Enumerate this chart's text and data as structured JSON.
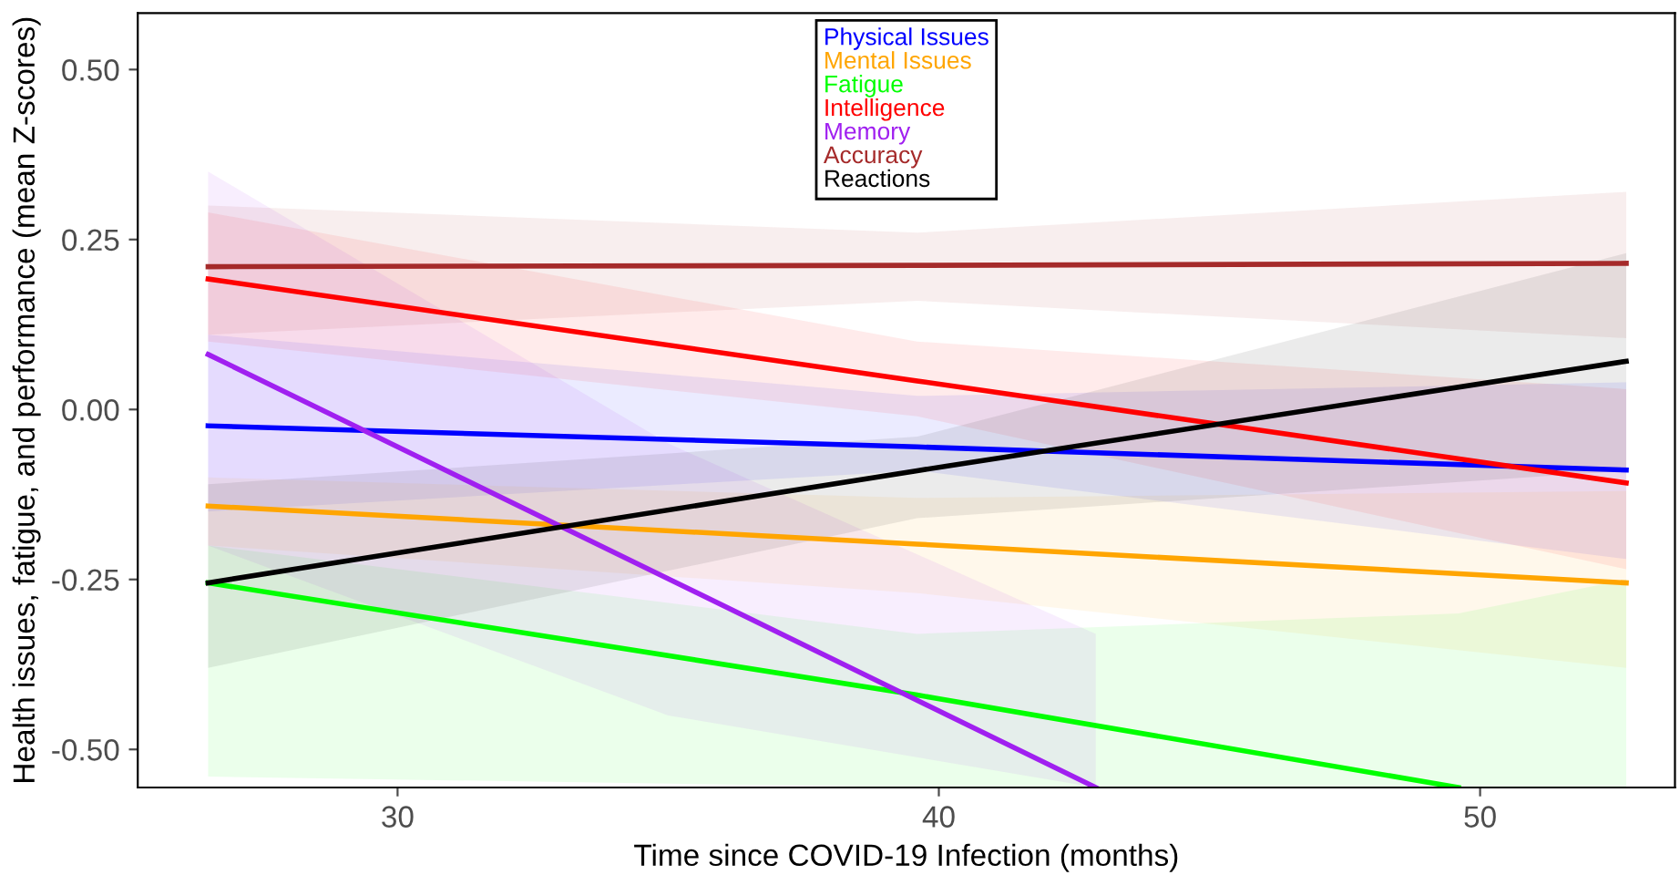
{
  "chart_data": {
    "type": "line",
    "xlabel": "Time since COVID-19 Infection (months)",
    "ylabel": "Health issues, fatigue, and performance (mean Z-scores)",
    "xlim": [
      25.2,
      53.6
    ],
    "xticks": [
      30,
      40,
      50
    ],
    "ylim": [
      -0.556,
      0.583
    ],
    "yticks": [
      {
        "value": 0.5,
        "label": "0.50"
      },
      {
        "value": 0.25,
        "label": "0.25"
      },
      {
        "value": 0,
        "label": "0.00"
      },
      {
        "value": -0.25,
        "label": "-0.25"
      },
      {
        "value": -0.5,
        "label": "-0.50"
      }
    ],
    "grid": false,
    "legend": "top",
    "marker": "none",
    "line_style": "solid",
    "series": [
      {
        "name": "Physical Issues",
        "color": "#0000ff",
        "x": [
          26.5,
          39.6,
          52.7
        ],
        "values": [
          -0.024,
          -0.055,
          -0.089
        ],
        "lower": [
          -0.15,
          -0.09,
          -0.22
        ],
        "upper": [
          0.11,
          0.02,
          0.04
        ]
      },
      {
        "name": "Mental Issues",
        "color": "#ffa500",
        "x": [
          26.5,
          39.6,
          52.7
        ],
        "values": [
          -0.142,
          -0.198,
          -0.255
        ],
        "lower": [
          -0.2,
          -0.27,
          -0.38
        ],
        "upper": [
          -0.1,
          -0.13,
          -0.12
        ]
      },
      {
        "name": "Fatigue",
        "color": "#00ff00",
        "x": [
          26.5,
          39.6,
          49.6,
          52.7
        ],
        "values": [
          -0.255,
          -0.42,
          -0.556,
          null
        ],
        "lower": [
          -0.54,
          -0.556,
          -0.556,
          -0.556
        ],
        "upper": [
          -0.2,
          -0.33,
          -0.3,
          -0.25
        ]
      },
      {
        "name": "Intelligence",
        "color": "#ff0000",
        "x": [
          26.5,
          39.6,
          52.7
        ],
        "values": [
          0.192,
          0.042,
          -0.108
        ],
        "lower": [
          0.1,
          -0.01,
          -0.235
        ],
        "upper": [
          0.29,
          0.1,
          0.03
        ]
      },
      {
        "name": "Memory",
        "color": "#a020f0",
        "x": [
          26.5,
          35,
          42.9
        ],
        "values": [
          0.081,
          -0.249,
          -0.556
        ],
        "lower": [
          -0.2,
          -0.45,
          -0.556
        ],
        "upper": [
          0.35,
          -0.05,
          -0.33
        ]
      },
      {
        "name": "Accuracy",
        "color": "#a52a2a",
        "x": [
          26.5,
          39.6,
          52.7
        ],
        "values": [
          0.21,
          0.212,
          0.215
        ],
        "lower": [
          0.11,
          0.16,
          0.105
        ],
        "upper": [
          0.3,
          0.26,
          0.32
        ]
      },
      {
        "name": "Reactions",
        "color": "#000000",
        "x": [
          26.5,
          39.6,
          52.7
        ],
        "values": [
          -0.255,
          -0.09,
          0.071
        ],
        "lower": [
          -0.38,
          -0.16,
          -0.09
        ],
        "upper": [
          -0.11,
          -0.04,
          0.23
        ]
      }
    ]
  }
}
